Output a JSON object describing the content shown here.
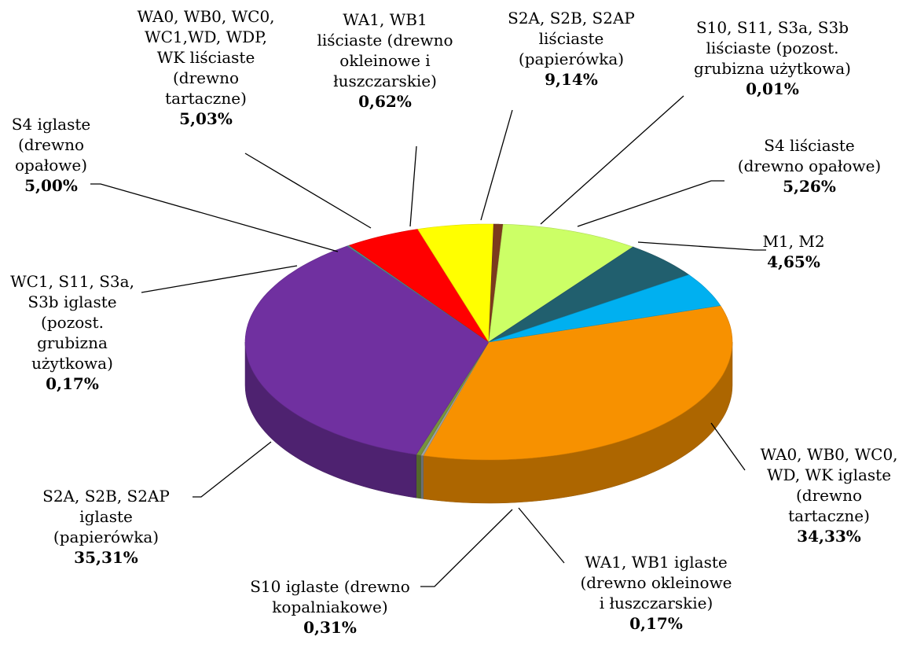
{
  "chart_data": {
    "type": "pie",
    "categories": [
      "WA0, WB0, WC0,\nWD, WK iglaste\n(drewno\ntartaczne)",
      "WA1, WB1 iglaste\n(drewno okleinowe\ni łuszczarskie)",
      "S10 iglaste (drewno\nkopalniakowe)",
      "S2A, S2B, S2AP\niglaste\n(papierówka)",
      "WC1, S11, S3a,\nS3b iglaste\n(pozost.\ngrubizna\nużytkowa)",
      "S4 iglaste\n(drewno\nopałowe)",
      "WA0, WB0, WC0,\nWC1,WD, WDP,\nWK liściaste\n(drewno\ntartaczne)",
      "WA1, WB1\nliściaste (drewno\nokleinowe i\nłuszczarskie)",
      "S2A, S2B, S2AP\nliściaste\n(papierówka)",
      "S10, S11, S3a, S3b\nliściaste (pozost.\ngrubizna użytkowa)",
      "S4 liściaste\n(drewno opałowe)",
      "M1, M2"
    ],
    "values": [
      34.33,
      0.17,
      0.31,
      35.31,
      0.17,
      5.0,
      5.03,
      0.62,
      9.14,
      0.01,
      5.26,
      4.65
    ],
    "value_labels": [
      "34,33%",
      "0,17%",
      "0,31%",
      "35,31%",
      "0,17%",
      "5,00%",
      "5,03%",
      "0,62%",
      "9,14%",
      "0,01%",
      "5,26%",
      "4,65%"
    ],
    "colors": [
      "#f79100",
      "#9aa0a6",
      "#77933c",
      "#7030a0",
      "#4f8a8b",
      "#ff0000",
      "#ffff00",
      "#7b3a1e",
      "#ccff66",
      "#a6a6a6",
      "#215f6e",
      "#00b0f0"
    ]
  }
}
